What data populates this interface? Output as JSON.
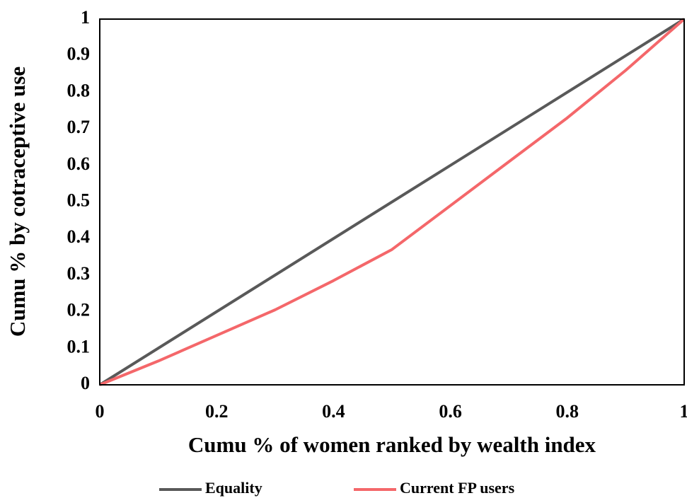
{
  "chart_data": {
    "type": "line",
    "xlabel": "Cumu % of women ranked by wealth index",
    "ylabel": "Cumu % by cotraceptive use",
    "series": [
      {
        "name": "Equality",
        "color": "#595959",
        "x": [
          0,
          1
        ],
        "values": [
          0,
          1
        ]
      },
      {
        "name": "Current FP users",
        "color": "#f4676a",
        "x": [
          0,
          0.1,
          0.2,
          0.3,
          0.4,
          0.5,
          0.6,
          0.7,
          0.8,
          0.9,
          1
        ],
        "values": [
          0,
          0.065,
          0.135,
          0.205,
          0.285,
          0.37,
          0.49,
          0.61,
          0.73,
          0.86,
          1
        ]
      }
    ],
    "xlim": [
      0,
      1
    ],
    "xticks": [
      0,
      0.2,
      0.4,
      0.6,
      0.8,
      1
    ],
    "ylim": [
      0,
      1
    ],
    "yticks": [
      0,
      0.1,
      0.2,
      0.3,
      0.4,
      0.5,
      0.6,
      0.7,
      0.8,
      0.9,
      1
    ],
    "grid": false,
    "legend": "bottom"
  }
}
